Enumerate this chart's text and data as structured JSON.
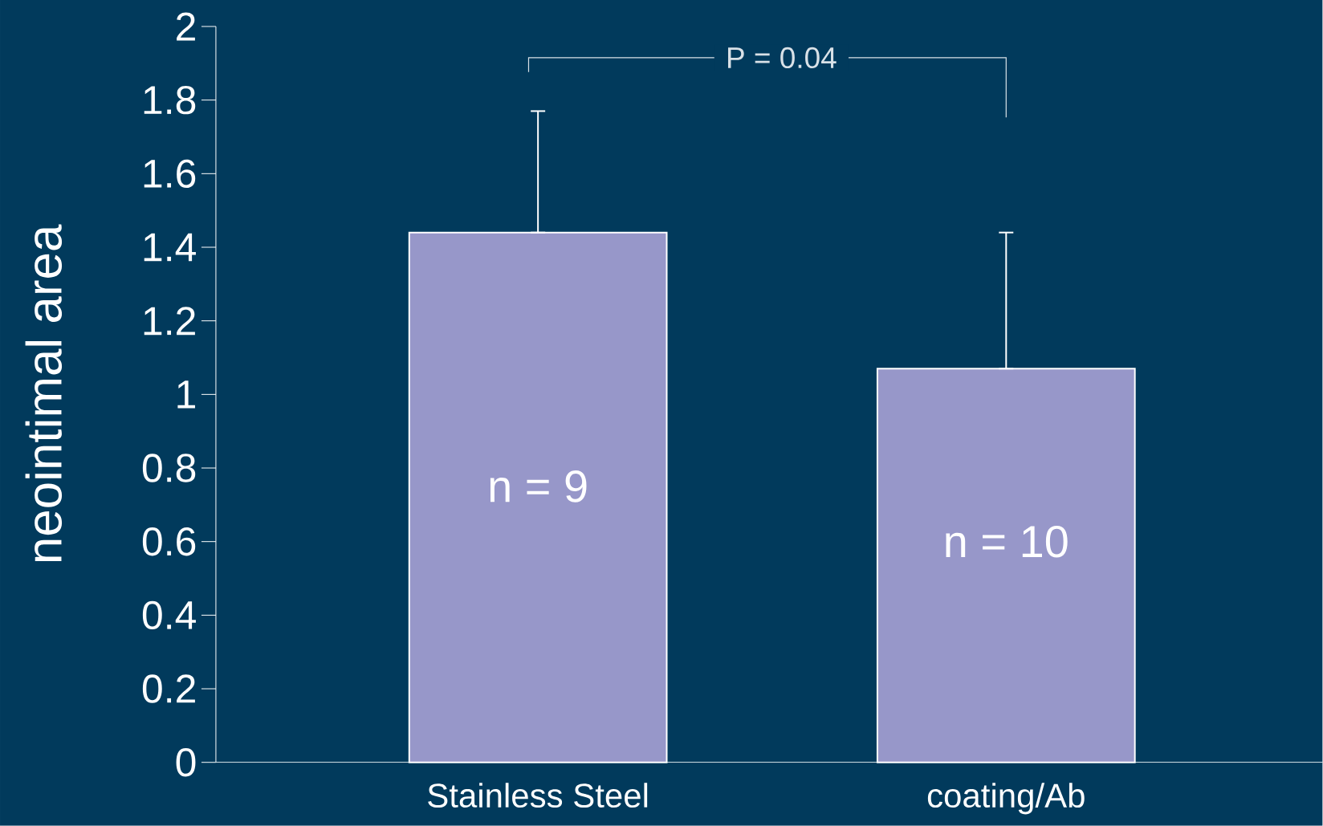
{
  "chart_data": {
    "type": "bar",
    "ylabel": "neointimal area",
    "categories": [
      "Stainless Steel",
      "coating/Ab"
    ],
    "values": [
      1.44,
      1.07
    ],
    "errors": [
      [
        1.44,
        1.77
      ],
      [
        1.07,
        1.44
      ]
    ],
    "color": "#9797c9",
    "ylim": [
      0,
      2
    ],
    "yticks": [
      0,
      0.2,
      0.4,
      0.6,
      0.8,
      1,
      1.2,
      1.4,
      1.6,
      1.8,
      2
    ],
    "grid": false,
    "annotations": [
      "P = 0.04",
      "n = 9",
      "n = 10"
    ]
  }
}
